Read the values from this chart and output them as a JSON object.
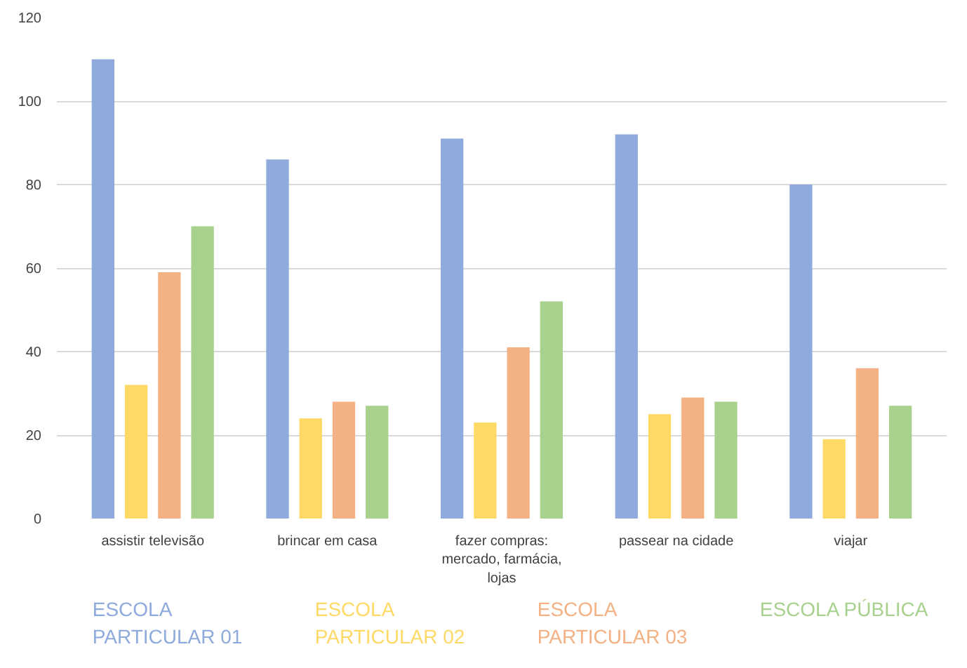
{
  "chart_data": {
    "type": "bar",
    "categories": [
      "assistir televisão",
      "brincar em casa",
      "fazer compras: mercado, farmácia, lojas",
      "passear na cidade",
      "viajar"
    ],
    "series": [
      {
        "name": "ESCOLA PARTICULAR 01",
        "color": "#8faadc",
        "values": [
          110,
          86,
          91,
          92,
          80
        ]
      },
      {
        "name": "ESCOLA PARTICULAR 02",
        "color": "#ffd966",
        "values": [
          32,
          24,
          23,
          25,
          19
        ]
      },
      {
        "name": "ESCOLA PARTICULAR 03",
        "color": "#f4b183",
        "values": [
          59,
          28,
          41,
          29,
          36
        ]
      },
      {
        "name": "ESCOLA PÚBLICA",
        "color": "#a9d18e",
        "values": [
          70,
          27,
          52,
          28,
          27
        ]
      }
    ],
    "ylim": [
      0,
      120
    ],
    "yticks": [
      0,
      20,
      40,
      60,
      80,
      100,
      120
    ],
    "grid": "y",
    "legend": "bottom"
  }
}
